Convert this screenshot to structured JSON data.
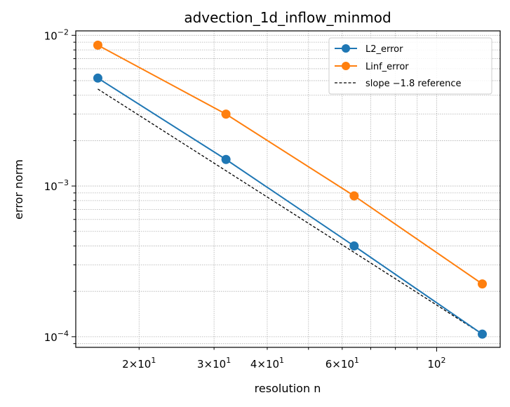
{
  "chart_data": {
    "type": "line",
    "title": "advection_1d_inflow_minmod",
    "xlabel": "resolution n",
    "ylabel": "error norm",
    "xscale": "log",
    "yscale": "log",
    "xlim": [
      14.2,
      141
    ],
    "ylim": [
      8.5e-05,
      0.0107
    ],
    "grid": true,
    "legend": "top-right",
    "x": [
      16,
      32,
      64,
      128
    ],
    "series": [
      {
        "name": "L2_error",
        "values": [
          0.0052,
          0.0015,
          0.0004,
          0.000104
        ],
        "color": "#1f77b4",
        "marker": "circle"
      },
      {
        "name": "Linf_error",
        "values": [
          0.0086,
          0.003,
          0.00086,
          0.000224
        ],
        "color": "#ff7f0e",
        "marker": "circle"
      }
    ],
    "reference": {
      "name": "slope −1.8 reference",
      "x": [
        16,
        128
      ],
      "values": [
        0.0044,
        0.000104
      ],
      "color": "#000000",
      "style": "dashed"
    },
    "xticks": [
      {
        "value": 20,
        "base": "2×10",
        "exp": "1"
      },
      {
        "value": 30,
        "base": "3×10",
        "exp": "1"
      },
      {
        "value": 40,
        "base": "4×10",
        "exp": "1"
      },
      {
        "value": 60,
        "base": "6×10",
        "exp": "1"
      },
      {
        "value": 100,
        "base": "10",
        "exp": "2"
      }
    ],
    "yticks": [
      {
        "value": 0.0001,
        "base": "10",
        "exp": "−4"
      },
      {
        "value": 0.001,
        "base": "10",
        "exp": "−3"
      },
      {
        "value": 0.01,
        "base": "10",
        "exp": "−2"
      }
    ]
  }
}
